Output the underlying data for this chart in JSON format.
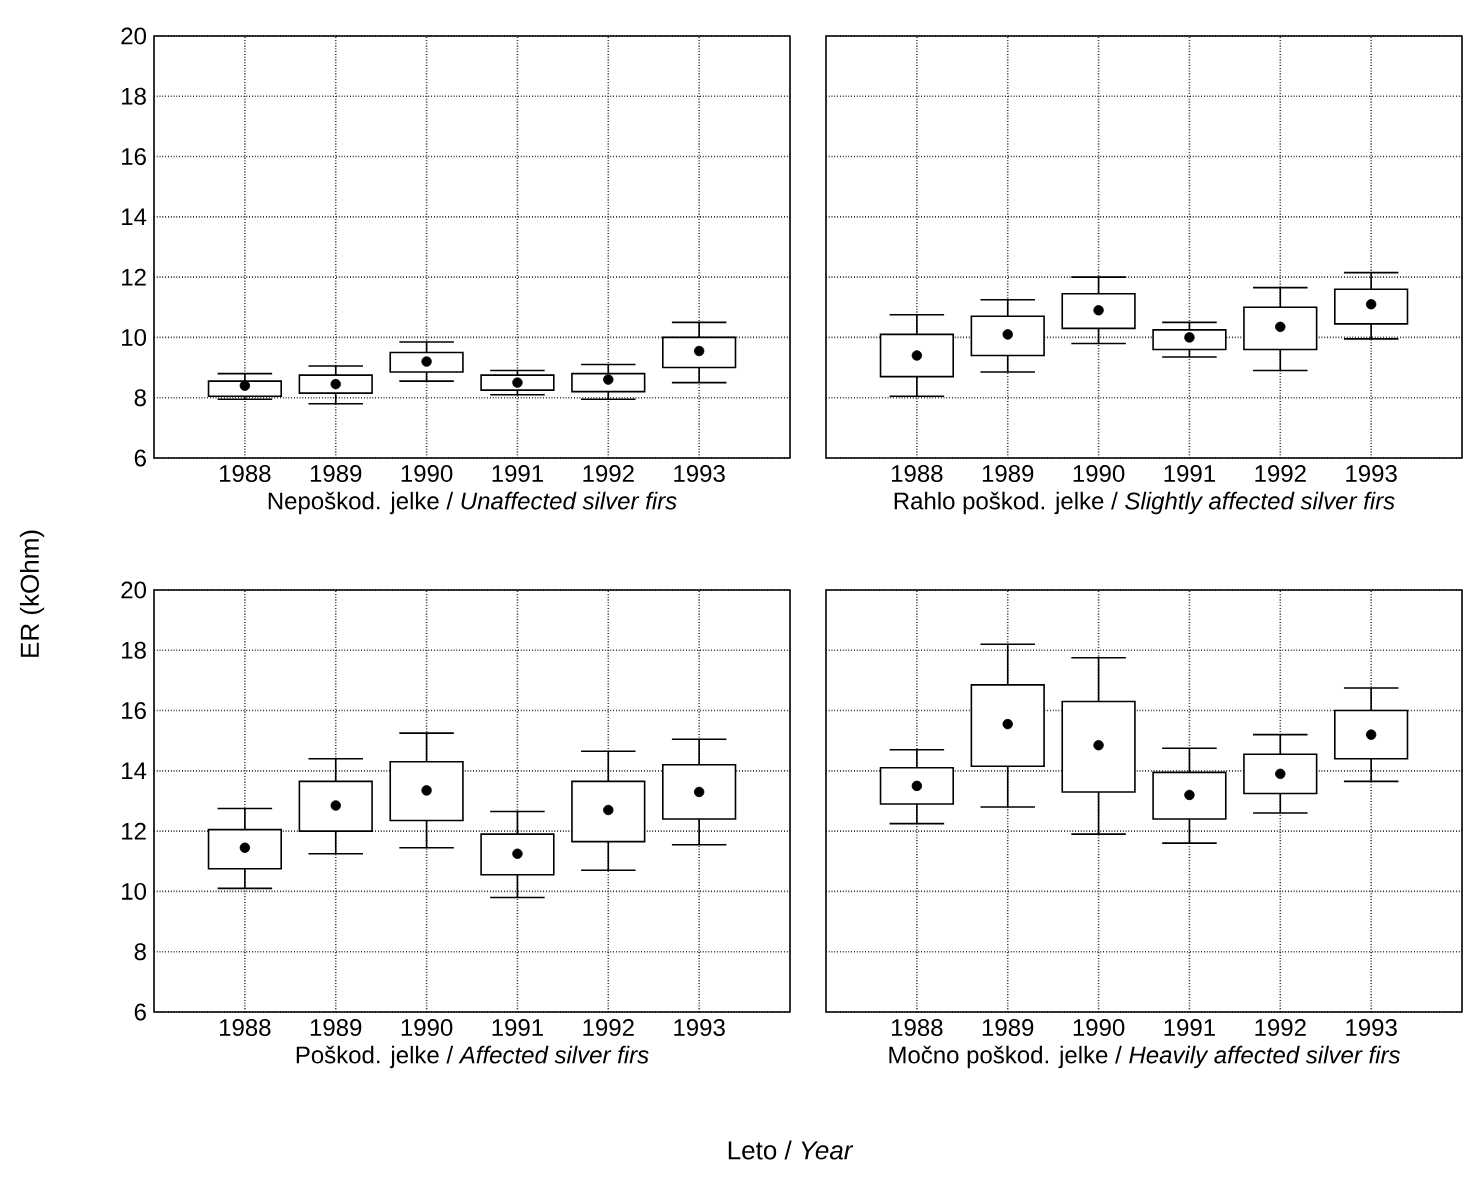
{
  "chart_data": [
    {
      "type": "box",
      "categories": [
        "1988",
        "1989",
        "1990",
        "1991",
        "1992",
        "1993"
      ],
      "xlabel": "Nepoškod. jelke / *Unaffected silver firs*",
      "ylabel": "ER (kOhm)",
      "ylim": [
        6,
        20
      ],
      "yticks": [
        6,
        8,
        10,
        12,
        14,
        16,
        18,
        20
      ],
      "grid": true,
      "boxes": [
        {
          "low": 7.95,
          "q1": 8.05,
          "median": 8.4,
          "q3": 8.55,
          "high": 8.8
        },
        {
          "low": 7.8,
          "q1": 8.15,
          "median": 8.45,
          "q3": 8.75,
          "high": 9.05
        },
        {
          "low": 8.55,
          "q1": 8.85,
          "median": 9.2,
          "q3": 9.5,
          "high": 9.85
        },
        {
          "low": 8.1,
          "q1": 8.25,
          "median": 8.5,
          "q3": 8.75,
          "high": 8.9
        },
        {
          "low": 7.95,
          "q1": 8.2,
          "median": 8.6,
          "q3": 8.8,
          "high": 9.1
        },
        {
          "low": 8.5,
          "q1": 9.0,
          "median": 9.55,
          "q3": 10.0,
          "high": 10.5
        }
      ]
    },
    {
      "type": "box",
      "categories": [
        "1988",
        "1989",
        "1990",
        "1991",
        "1992",
        "1993"
      ],
      "xlabel": "Rahlo poškod. jelke / *Slightly affected silver firs*",
      "ylim": [
        6,
        20
      ],
      "yticks": [
        6,
        8,
        10,
        12,
        14,
        16,
        18,
        20
      ],
      "grid": true,
      "tick_labels": "x",
      "boxes": [
        {
          "low": 8.05,
          "q1": 8.7,
          "median": 9.4,
          "q3": 10.1,
          "high": 10.75
        },
        {
          "low": 8.85,
          "q1": 9.4,
          "median": 10.1,
          "q3": 10.7,
          "high": 11.25
        },
        {
          "low": 9.8,
          "q1": 10.3,
          "median": 10.9,
          "q3": 11.45,
          "high": 12.0
        },
        {
          "low": 9.35,
          "q1": 9.6,
          "median": 10.0,
          "q3": 10.25,
          "high": 10.5
        },
        {
          "low": 8.9,
          "q1": 9.6,
          "median": 10.35,
          "q3": 11.0,
          "high": 11.65
        },
        {
          "low": 9.95,
          "q1": 10.45,
          "median": 11.1,
          "q3": 11.6,
          "high": 12.15
        }
      ]
    },
    {
      "type": "box",
      "categories": [
        "1988",
        "1989",
        "1990",
        "1991",
        "1992",
        "1993"
      ],
      "xlabel": "Poškod. jelke / *Affected silver firs*",
      "ylim": [
        6,
        20
      ],
      "yticks": [
        6,
        8,
        10,
        12,
        14,
        16,
        18,
        20
      ],
      "grid": true,
      "annotations": [
        "Leto / *Year*"
      ],
      "boxes": [
        {
          "low": 10.1,
          "q1": 10.75,
          "median": 11.45,
          "q3": 12.05,
          "high": 12.75
        },
        {
          "low": 11.25,
          "q1": 12.0,
          "median": 12.85,
          "q3": 13.65,
          "high": 14.4
        },
        {
          "low": 11.45,
          "q1": 12.35,
          "median": 13.35,
          "q3": 14.3,
          "high": 15.25
        },
        {
          "low": 9.8,
          "q1": 10.55,
          "median": 11.25,
          "q3": 11.9,
          "high": 12.65
        },
        {
          "low": 10.7,
          "q1": 11.65,
          "median": 12.7,
          "q3": 13.65,
          "high": 14.65
        },
        {
          "low": 11.55,
          "q1": 12.4,
          "median": 13.3,
          "q3": 14.2,
          "high": 15.05
        }
      ]
    },
    {
      "type": "box",
      "categories": [
        "1988",
        "1989",
        "1990",
        "1991",
        "1992",
        "1993"
      ],
      "xlabel": "Močno poškod. jelke / *Heavily affected silver firs*",
      "ylim": [
        6,
        20
      ],
      "yticks": [
        6,
        8,
        10,
        12,
        14,
        16,
        18,
        20
      ],
      "grid": true,
      "tick_labels": "x",
      "boxes": [
        {
          "low": 12.25,
          "q1": 12.9,
          "median": 13.5,
          "q3": 14.1,
          "high": 14.7
        },
        {
          "low": 12.8,
          "q1": 14.15,
          "median": 15.55,
          "q3": 16.85,
          "high": 18.2
        },
        {
          "low": 11.9,
          "q1": 13.3,
          "median": 14.85,
          "q3": 16.3,
          "high": 17.75
        },
        {
          "low": 11.6,
          "q1": 12.4,
          "median": 13.2,
          "q3": 13.95,
          "high": 14.75
        },
        {
          "low": 12.6,
          "q1": 13.25,
          "median": 13.9,
          "q3": 14.55,
          "high": 15.2
        },
        {
          "low": 13.65,
          "q1": 14.4,
          "median": 15.2,
          "q3": 16.0,
          "high": 16.75
        }
      ]
    }
  ]
}
